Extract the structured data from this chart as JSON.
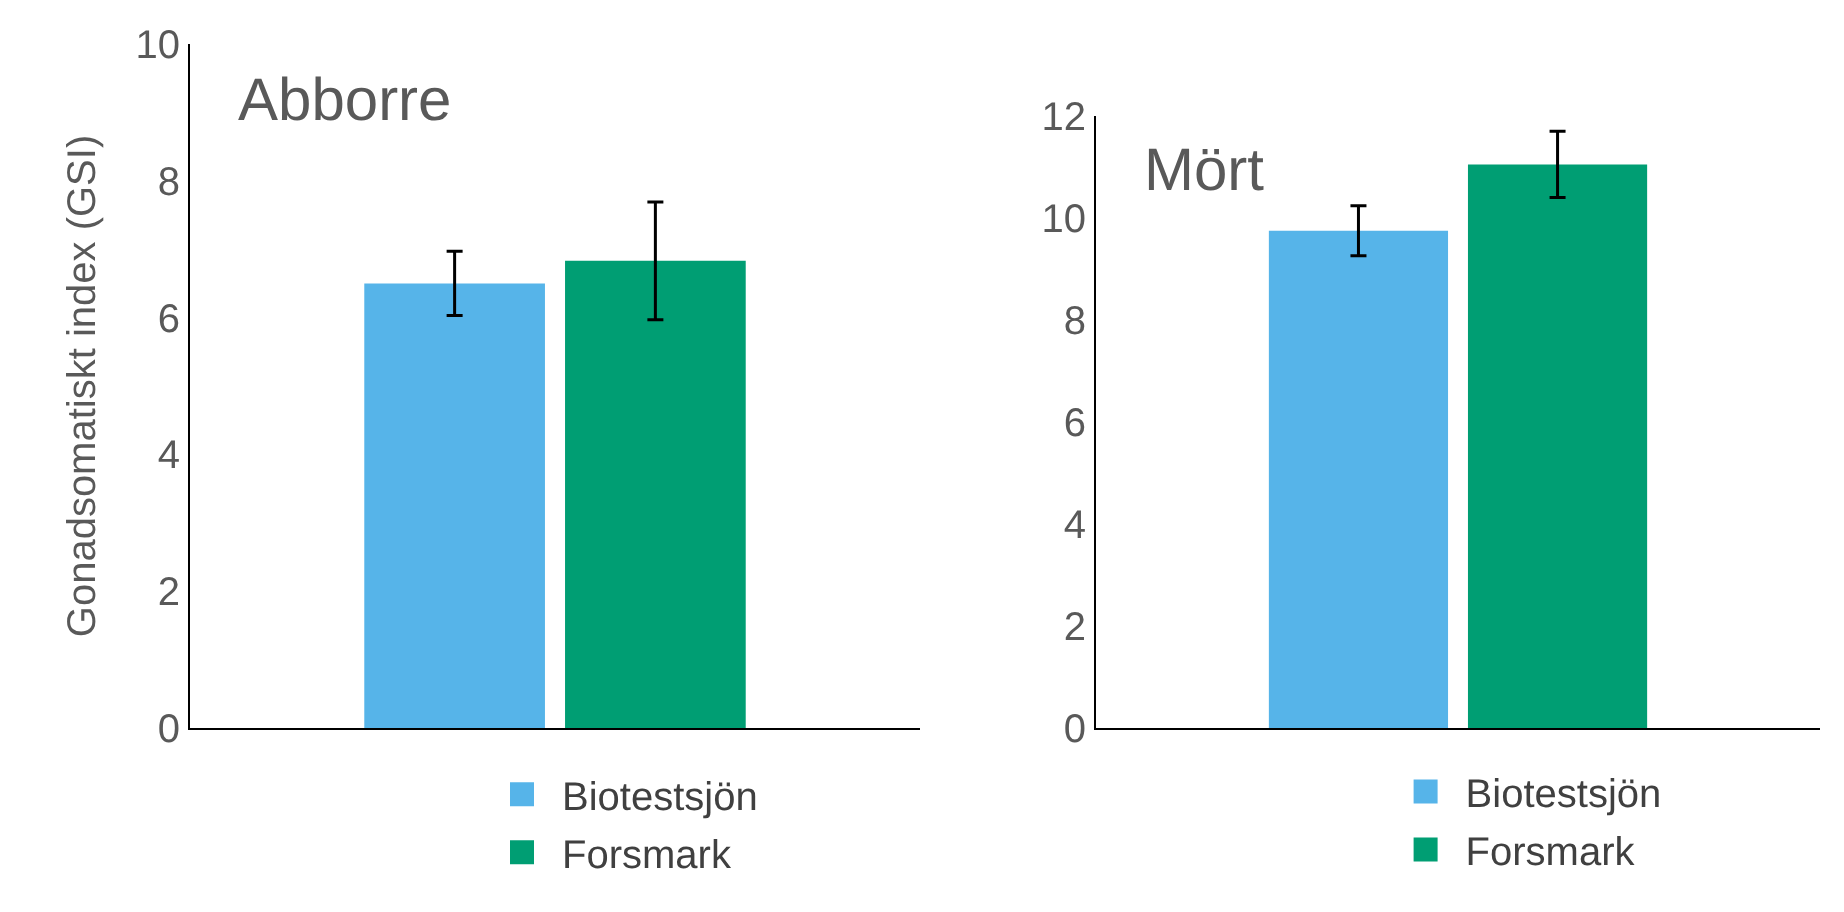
{
  "chart_data": [
    {
      "type": "bar",
      "title": "Abborre",
      "ylabel": "Gonadsomatiskt index (GSI)",
      "categories": [
        null
      ],
      "ylim": [
        0,
        10
      ],
      "yticks": [
        0,
        2,
        4,
        6,
        8,
        10
      ],
      "grid": false,
      "legend": "bottom",
      "series": [
        {
          "name": "Biotestsjön",
          "color": "#56b4e9",
          "values": [
            6.5
          ],
          "errors": [
            0.47
          ]
        },
        {
          "name": "Forsmark",
          "color": "#009e73",
          "values": [
            6.83
          ],
          "errors": [
            0.86
          ]
        }
      ]
    },
    {
      "type": "bar",
      "title": "Mört",
      "categories": [
        null
      ],
      "ylim": [
        0,
        12
      ],
      "yticks": [
        0,
        2,
        4,
        6,
        8,
        10,
        12
      ],
      "grid": false,
      "legend": "bottom",
      "series": [
        {
          "name": "Biotestsjön",
          "color": "#56b4e9",
          "values": [
            9.75
          ],
          "errors": [
            0.49
          ]
        },
        {
          "name": "Forsmark",
          "color": "#009e73",
          "values": [
            11.05
          ],
          "errors": [
            0.65
          ]
        }
      ]
    }
  ]
}
